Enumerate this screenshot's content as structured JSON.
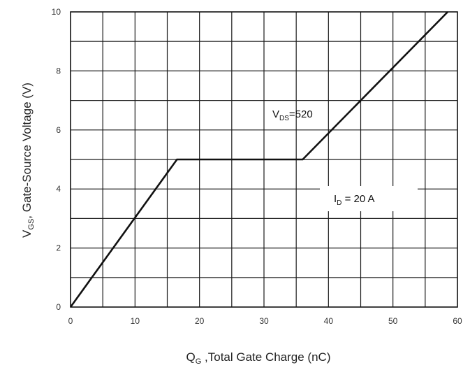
{
  "chart_data": {
    "type": "line",
    "x": [
      0,
      16.5,
      36,
      58.5
    ],
    "series": [
      {
        "values": [
          0,
          5,
          5,
          10
        ]
      }
    ],
    "xlim": [
      0,
      60
    ],
    "ylim": [
      0,
      10
    ],
    "xticks": [
      "0",
      "10",
      "20",
      "30",
      "40",
      "50",
      "60"
    ],
    "yticks": [
      "0",
      "2",
      "4",
      "6",
      "8",
      "10"
    ],
    "xlabel": {
      "main": "Q",
      "sub": "G",
      "rest": " ,Total Gate Charge (nC)"
    },
    "ylabel": {
      "main": "V",
      "sub": "GS",
      "rest": ", Gate-Source Voltage (V)"
    },
    "grid": true,
    "annotations": {
      "vds": {
        "main": "V",
        "sub": "DS",
        "rest": "=520"
      },
      "id": {
        "main": "I",
        "sub": "D",
        "rest": " = 20 A"
      }
    },
    "colors": {
      "line": "#111111",
      "grid": "#1a1a1a",
      "axis": "#111111"
    }
  }
}
